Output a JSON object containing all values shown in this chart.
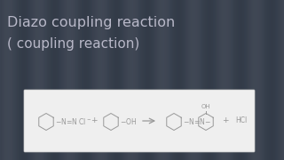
{
  "title_line1": "Diazo coupling reaction",
  "title_line2": "( coupling reaction)",
  "bg_color": "#2e3a4a",
  "bg_color2": "#3d4a5c",
  "title_color": "#b8b8c8",
  "box_bg": "#efefef",
  "box_edge": "#cccccc",
  "chem_color": "#aaaaaa",
  "chem_color2": "#999999",
  "title_fontsize": 11.5,
  "subtitle_fontsize": 11.0,
  "chem_fontsize": 5.5
}
